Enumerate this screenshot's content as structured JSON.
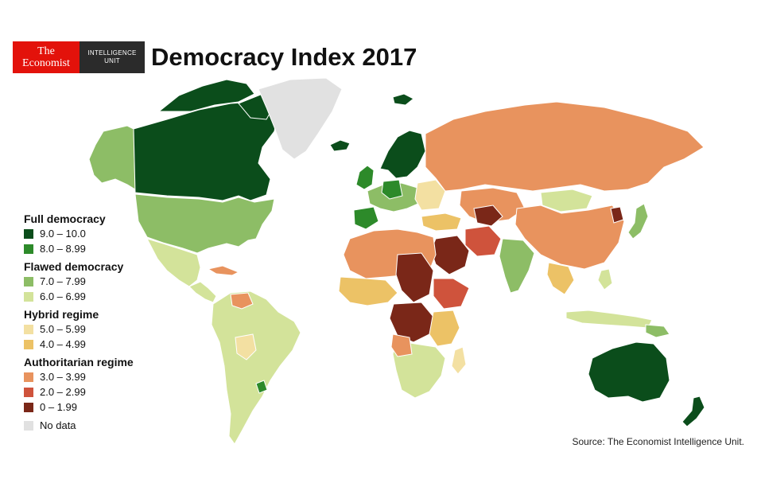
{
  "logo": {
    "economist_line1": "The",
    "economist_line2": "Economist",
    "eiu_line1": "INTELLIGENCE",
    "eiu_line2": "UNIT"
  },
  "title": "Democracy Index 2017",
  "legend": {
    "groups": [
      {
        "heading": "Full democracy",
        "items": [
          {
            "label": "9.0 – 10.0",
            "color": "#0b4d1b"
          },
          {
            "label": "8.0 – 8.99",
            "color": "#2d8a2a"
          }
        ]
      },
      {
        "heading": "Flawed democracy",
        "items": [
          {
            "label": "7.0 – 7.99",
            "color": "#8dbd66"
          },
          {
            "label": "6.0 – 6.99",
            "color": "#d3e39a"
          }
        ]
      },
      {
        "heading": "Hybrid regime",
        "items": [
          {
            "label": "5.0 – 5.99",
            "color": "#f3e0a2"
          },
          {
            "label": "4.0 – 4.99",
            "color": "#ecc266"
          }
        ]
      },
      {
        "heading": "Authoritarian regime",
        "items": [
          {
            "label": "3.0 – 3.99",
            "color": "#e8935e"
          },
          {
            "label": "2.0 – 2.99",
            "color": "#cf533c"
          },
          {
            "label": "0 – 1.99",
            "color": "#7a2718"
          }
        ]
      }
    ],
    "no_data": {
      "label": "No data",
      "color": "#e1e1e1"
    }
  },
  "source": "Source: The Economist Intelligence Unit."
}
